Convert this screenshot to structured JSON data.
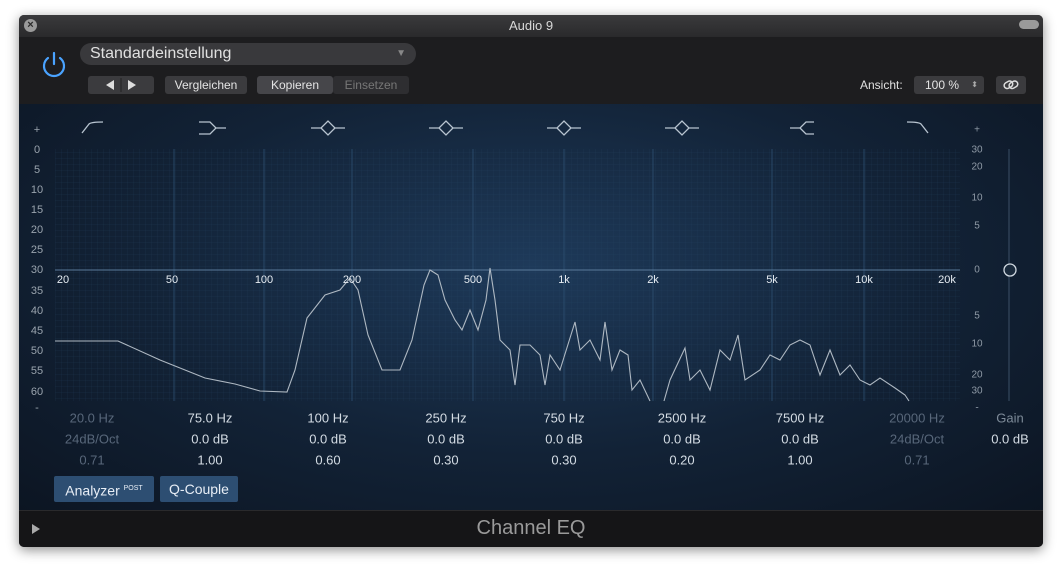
{
  "window": {
    "title": "Audio 9"
  },
  "header": {
    "preset": "Standardeinstellung",
    "compare": "Vergleichen",
    "copy": "Kopieren",
    "paste": "Einsetzen",
    "view_label": "Ansicht:",
    "view_value": "100 %"
  },
  "display": {
    "left_scale": [
      "+",
      "0",
      "5",
      "10",
      "15",
      "20",
      "25",
      "30",
      "35",
      "40",
      "45",
      "50",
      "55",
      "60",
      "-"
    ],
    "right_scale": [
      "+",
      "30",
      "20",
      "10",
      "5",
      "0",
      "5",
      "10",
      "20",
      "30",
      "-"
    ],
    "frequency_labels": [
      "20",
      "50",
      "100",
      "200",
      "500",
      "1k",
      "2k",
      "5k",
      "10k",
      "20k"
    ]
  },
  "bands": [
    {
      "frequency": "20.0 Hz",
      "gain": "24dB/Oct",
      "q": "0.71"
    },
    {
      "frequency": "75.0 Hz",
      "gain": "0.0 dB",
      "q": "1.00"
    },
    {
      "frequency": "100 Hz",
      "gain": "0.0 dB",
      "q": "0.60"
    },
    {
      "frequency": "250 Hz",
      "gain": "0.0 dB",
      "q": "0.30"
    },
    {
      "frequency": "750 Hz",
      "gain": "0.0 dB",
      "q": "0.30"
    },
    {
      "frequency": "2500 Hz",
      "gain": "0.0 dB",
      "q": "0.20"
    },
    {
      "frequency": "7500 Hz",
      "gain": "0.0 dB",
      "q": "1.00"
    },
    {
      "frequency": "20000 Hz",
      "gain": "24dB/Oct",
      "q": "0.71"
    }
  ],
  "output": {
    "label": "Gain",
    "value": "0.0 dB"
  },
  "buttons": {
    "analyzer": "Analyzer",
    "analyzer_mode": "POST",
    "q_couple": "Q-Couple"
  },
  "footer": {
    "title": "Channel EQ"
  }
}
